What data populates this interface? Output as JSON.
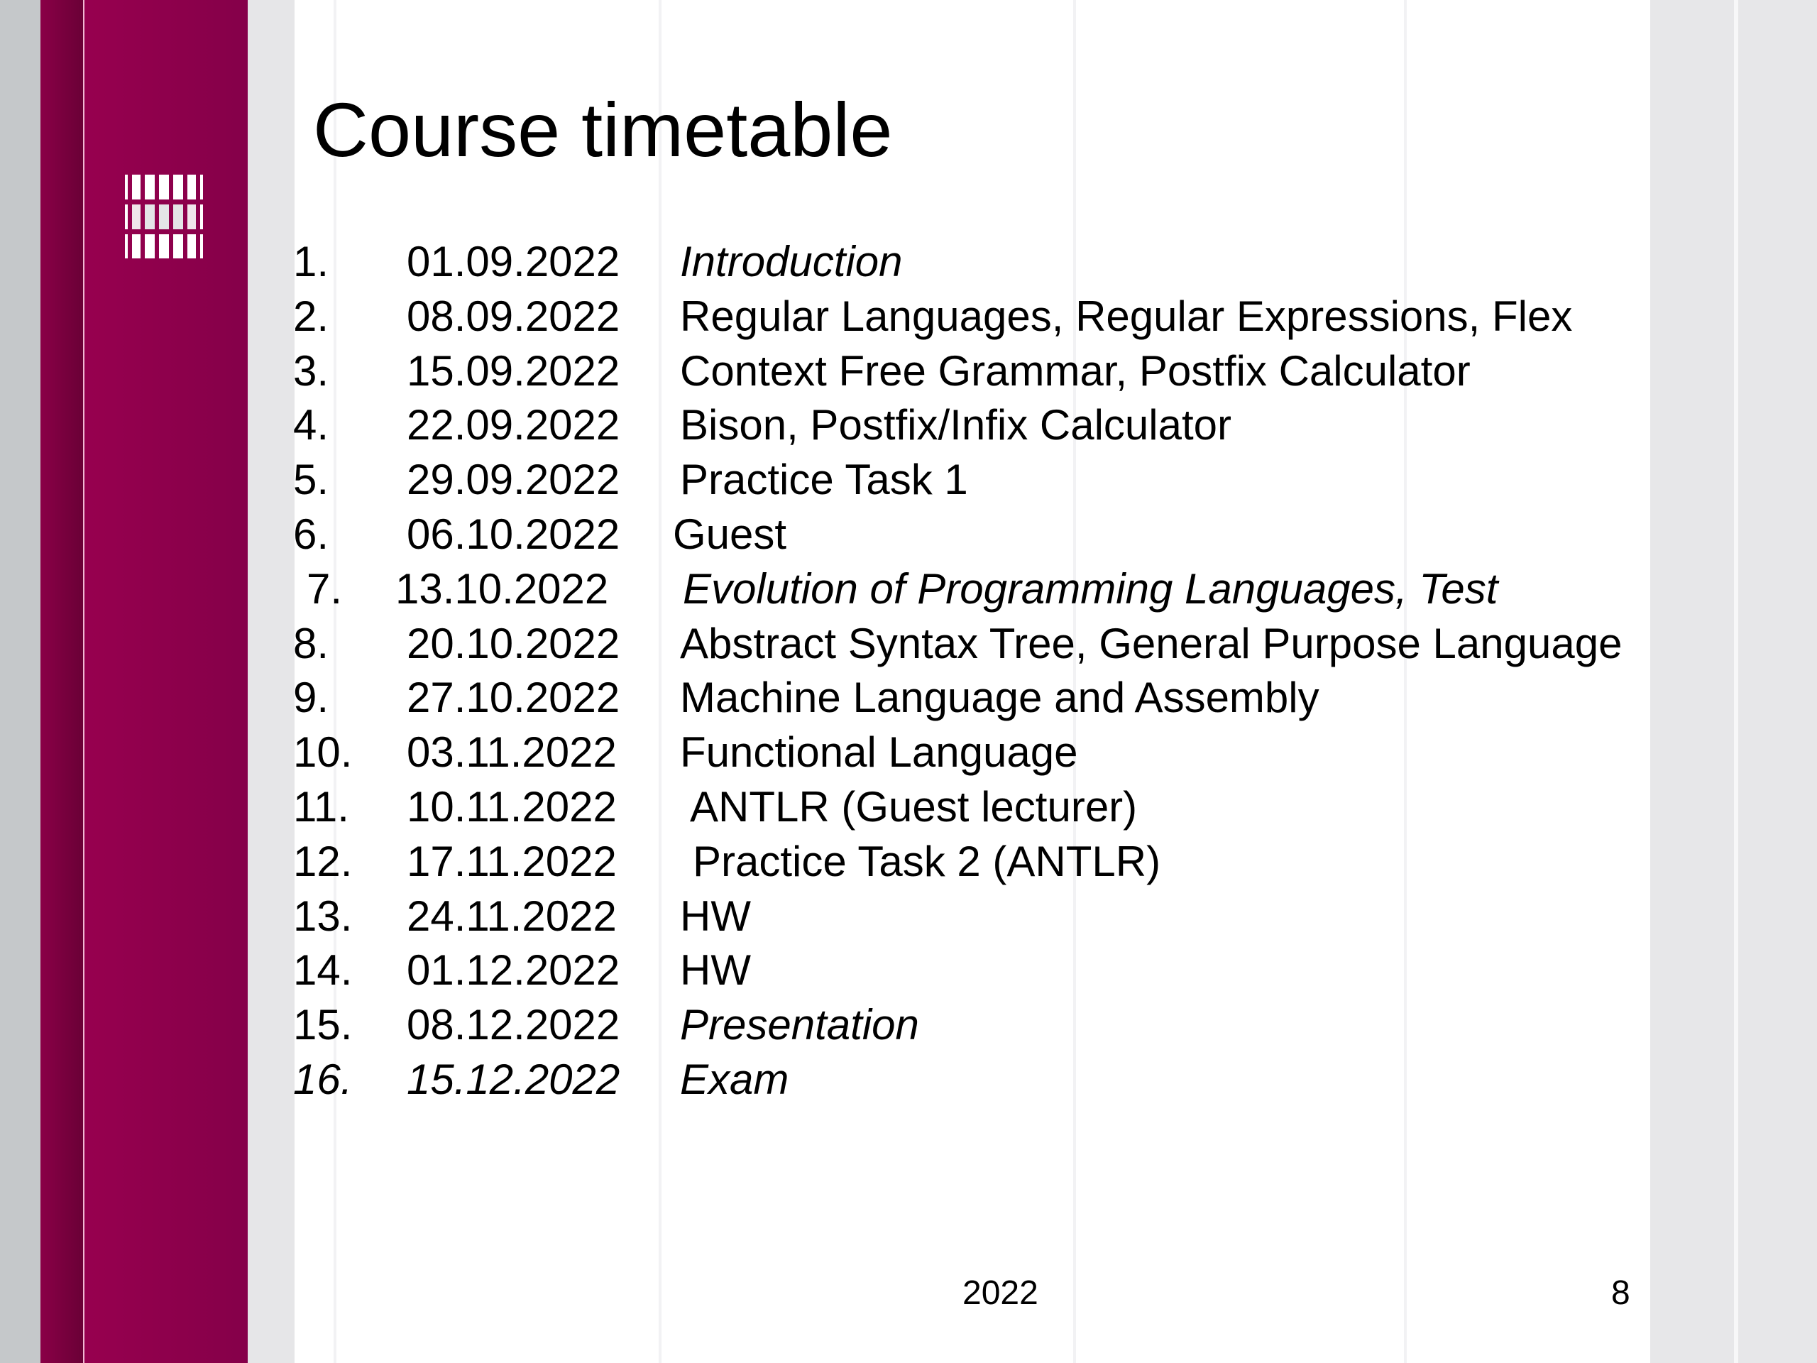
{
  "slide": {
    "title": "Course timetable",
    "rows": [
      {
        "num": "1.",
        "date": "01.09.2022",
        "topic": "Introduction",
        "italic_topic": true
      },
      {
        "num": "2.",
        "date": "08.09.2022",
        "topic": "Regular Languages, Regular Expressions, Flex"
      },
      {
        "num": "3.",
        "date": "15.09.2022",
        "topic": "Context Free Grammar, Postfix Calculator"
      },
      {
        "num": "4.",
        "date": "22.09.2022",
        "topic": "Bison, Postfix/Infix Calculator"
      },
      {
        "num": "5.",
        "date": "29.09.2022",
        "topic": "Practice Task 1"
      },
      {
        "num": "6.",
        "date": "06.10.2022",
        "topic": "Guest"
      },
      {
        "num": "7.",
        "date": "13.10.2022",
        "topic": "Evolution of Programming Languages, Test",
        "italic_topic": true
      },
      {
        "num": "8.",
        "date": "20.10.2022",
        "topic": "Abstract Syntax Tree, General Purpose Language"
      },
      {
        "num": "9.",
        "date": "27.10.2022",
        "topic": "Machine Language and Assembly"
      },
      {
        "num": "10.",
        "date": "03.11.2022",
        "topic": "Functional Language"
      },
      {
        "num": "11.",
        "date": "10.11.2022",
        "topic": "ANTLR (Guest lecturer)"
      },
      {
        "num": "12.",
        "date": "17.11.2022",
        "topic": "Practice Task 2 (ANTLR)"
      },
      {
        "num": "13.",
        "date": "24.11.2022",
        "topic": "HW"
      },
      {
        "num": "14.",
        "date": "01.12.2022",
        "topic": "HW"
      },
      {
        "num": "15.",
        "date": "08.12.2022",
        "topic": "Presentation",
        "italic_topic": true
      },
      {
        "num": "16.",
        "date": "15.12.2022",
        "topic": "Exam",
        "italic_all": true
      }
    ],
    "footer_year": "2022",
    "page_number": "8"
  },
  "colors": {
    "accent": "#8e004a",
    "accent_dark": "#6e0038",
    "side_grey": "#c5c8ca",
    "panel_grey": "#e6e6e8"
  }
}
